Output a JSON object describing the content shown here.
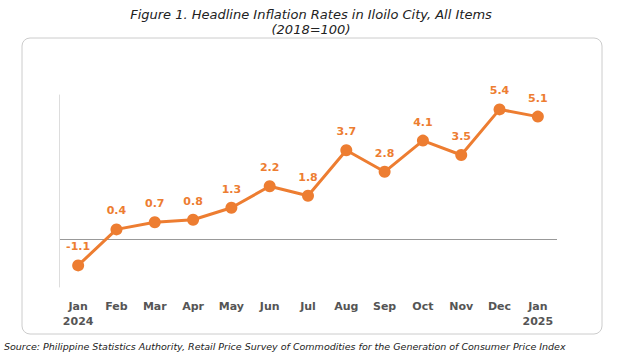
{
  "chart_data": {
    "type": "line",
    "title": "Figure 1. Headline Inflation Rates in Iloilo City, All Items",
    "subtitle": "(2018=100)",
    "source": "Source: Philippine Statistics Authority, Retail Price Survey of Commodities for the Generation of Consumer Price Index",
    "categories": [
      "Jan\n2024",
      "Feb",
      "Mar",
      "Apr",
      "May",
      "Jun",
      "Jul",
      "Aug",
      "Sep",
      "Oct",
      "Nov",
      "Dec",
      "Jan\n2025"
    ],
    "values": [
      -1.1,
      0.4,
      0.7,
      0.8,
      1.3,
      2.2,
      1.8,
      3.7,
      2.8,
      4.1,
      3.5,
      5.4,
      5.1
    ],
    "color": "#ed7d31",
    "marker": "circle",
    "line_style": "solid",
    "ylim": [
      -2,
      6
    ],
    "yticks": [
      0
    ],
    "grid": true,
    "data_labels": true,
    "tick_labels": "x"
  }
}
